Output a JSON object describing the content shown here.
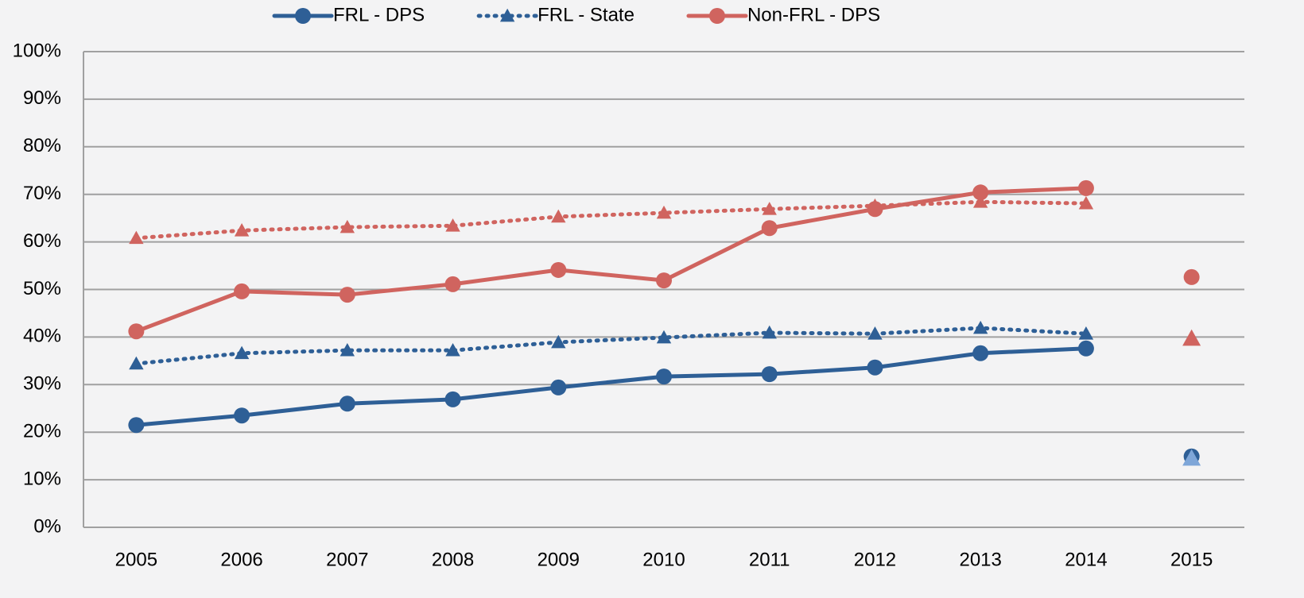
{
  "chart_data": {
    "type": "line",
    "categories": [
      "2005",
      "2006",
      "2007",
      "2008",
      "2009",
      "2010",
      "2011",
      "2012",
      "2013",
      "2014",
      "2015"
    ],
    "ylim": [
      0,
      100
    ],
    "yticks": [
      {
        "value": 0,
        "label": "0%"
      },
      {
        "value": 10,
        "label": "10%"
      },
      {
        "value": 20,
        "label": "20%"
      },
      {
        "value": 30,
        "label": "30%"
      },
      {
        "value": 40,
        "label": "40%"
      },
      {
        "value": 50,
        "label": "50%"
      },
      {
        "value": 60,
        "label": "60%"
      },
      {
        "value": 70,
        "label": "70%"
      },
      {
        "value": 80,
        "label": "80%"
      },
      {
        "value": 90,
        "label": "90%"
      },
      {
        "value": 100,
        "label": "100%"
      }
    ],
    "grid": true,
    "legend": "top",
    "series": [
      {
        "name": "FRL - DPS",
        "color": "#2e5f96",
        "line_style": "solid",
        "marker": "circle",
        "values": [
          21.5,
          23.5,
          26,
          26.9,
          29.4,
          31.7,
          32.2,
          33.6,
          36.6,
          37.6,
          null
        ]
      },
      {
        "name": "FRL - State",
        "color": "#2e5f96",
        "line_style": "dotted",
        "marker": "triangle",
        "values": [
          34.4,
          36.6,
          37.2,
          37.2,
          38.9,
          39.9,
          40.9,
          40.7,
          41.9,
          40.7,
          null
        ]
      },
      {
        "name": "Non-FRL - DPS",
        "color": "#d0645f",
        "line_style": "solid",
        "marker": "circle",
        "values": [
          41.2,
          49.6,
          48.9,
          51.1,
          54.1,
          51.9,
          62.9,
          66.9,
          70.4,
          71.3,
          null
        ]
      },
      {
        "color": "#d0645f",
        "line_style": "dotted",
        "marker": "triangle",
        "values": [
          60.8,
          62.4,
          63.1,
          63.4,
          65.3,
          66.1,
          66.9,
          67.6,
          68.4,
          68.1,
          null
        ]
      },
      {
        "color": "#2e5f96",
        "line_style": "none",
        "marker": "circle",
        "values": [
          null,
          null,
          null,
          null,
          null,
          null,
          null,
          null,
          null,
          null,
          14.9
        ]
      },
      {
        "color": "#7ea6d8",
        "line_style": "none",
        "marker": "triangle",
        "values": [
          null,
          null,
          null,
          null,
          null,
          null,
          null,
          null,
          null,
          null,
          14.5
        ]
      },
      {
        "color": "#d0645f",
        "line_style": "none",
        "marker": "circle",
        "values": [
          null,
          null,
          null,
          null,
          null,
          null,
          null,
          null,
          null,
          null,
          52.6
        ]
      },
      {
        "color": "#d0645f",
        "line_style": "none",
        "marker": "triangle",
        "values": [
          null,
          null,
          null,
          null,
          null,
          null,
          null,
          null,
          null,
          null,
          39.7
        ]
      }
    ]
  }
}
